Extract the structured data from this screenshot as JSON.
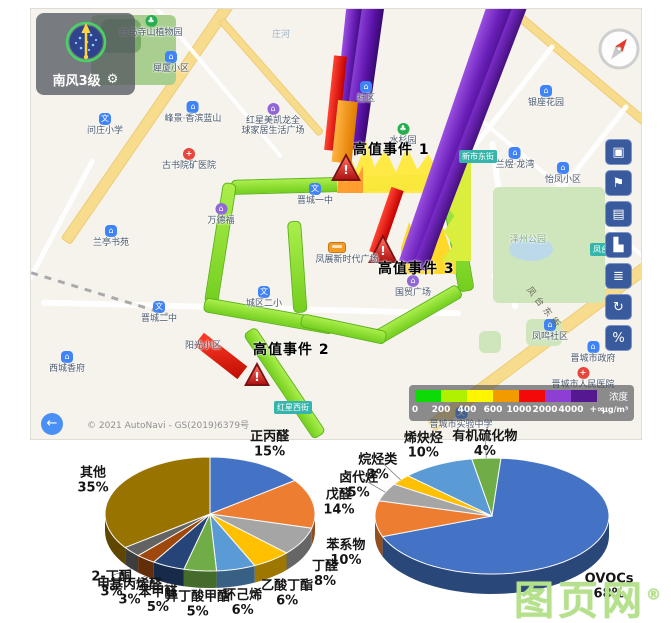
{
  "map": {
    "wind_badge": {
      "label": "南风3级",
      "gear": "⚙"
    },
    "river_label": "庄河",
    "road_tags": {
      "xinshi": "新市东街",
      "fengtai_tag": "凤台东街",
      "hongxing": "红星西街",
      "fengtai_road": "凤台东街"
    },
    "places": [
      {
        "name": "白马寺山植物园",
        "icon": "park"
      },
      {
        "name": "犀厦小区",
        "icon": "home"
      },
      {
        "name": "峰景·香滨蓝山",
        "icon": "home"
      },
      {
        "name": "问庄小学",
        "icon": "school"
      },
      {
        "name": "红星美凯龙全",
        "name2": "球家居生活广场",
        "icon": "mall"
      },
      {
        "name": "社区",
        "icon": "home"
      },
      {
        "name": "银座花园",
        "icon": "home"
      },
      {
        "name": "水杉园",
        "icon": "park"
      },
      {
        "name": "古书院矿医院",
        "icon": "hospital"
      },
      {
        "name": "万德福",
        "icon": "mall"
      },
      {
        "name": "兰亭书苑",
        "icon": "home"
      },
      {
        "name": "晋城一中",
        "icon": "school"
      },
      {
        "name": "兰煜·龙湾",
        "icon": "home"
      },
      {
        "name": "怡凤小区",
        "icon": "home"
      },
      {
        "name": "凤展新时代广场",
        "icon": "none"
      },
      {
        "name": "国贸广场",
        "icon": "mall"
      },
      {
        "name": "城区二小",
        "icon": "school"
      },
      {
        "name": "晋城二中",
        "icon": "school"
      },
      {
        "name": "阳光小区",
        "icon": "none"
      },
      {
        "name": "西城香府",
        "icon": "home"
      },
      {
        "name": "凤鸣社区",
        "icon": "home"
      },
      {
        "name": "晋城市政府",
        "icon": "gov"
      },
      {
        "name": "晋城市人民医院",
        "icon": "hospital"
      },
      {
        "name": "晋城市实验中学",
        "icon": "school"
      },
      {
        "name": "泽州公园",
        "icon": "none"
      }
    ],
    "events": [
      {
        "label": "高值事件 1"
      },
      {
        "label": "高值事件 3"
      },
      {
        "label": "高值事件 2"
      }
    ],
    "legend": {
      "title": "浓度",
      "unit": "μg/m³",
      "ticks": [
        "0",
        "200",
        "400",
        "600",
        "1000",
        "2000",
        "4000",
        "+∞"
      ],
      "colors": [
        "#0ddb07",
        "#aef202",
        "#fef600",
        "#f29b00",
        "#f30909",
        "#8d3fd3",
        "#55188f"
      ]
    },
    "toolbar": [
      {
        "name": "monitor",
        "glyph": "▣"
      },
      {
        "name": "flag",
        "glyph": "⚑"
      },
      {
        "name": "gallery",
        "glyph": "▤"
      },
      {
        "name": "chart",
        "glyph": "▙"
      },
      {
        "name": "report",
        "glyph": "≣"
      },
      {
        "name": "refresh",
        "glyph": "↻"
      },
      {
        "name": "percent",
        "glyph": "%"
      }
    ],
    "copyright": "© 2021 AutoNavi - GS(2019)6379号",
    "back_arrow": "←"
  },
  "watermark": {
    "text": "图页网",
    "reg": "®"
  },
  "chart_data": [
    {
      "type": "pie",
      "labels": [
        "正丙醛",
        "戊醛",
        "丁醛",
        "乙酸丁酯",
        "环己烯",
        "异丁酸甲酯",
        "苯甲醛",
        "甲基丙烯醛",
        "2-丁酮",
        "其他"
      ],
      "values": [
        15,
        14,
        8,
        6,
        6,
        5,
        5,
        3,
        3,
        35
      ],
      "colors": [
        "#4472C4",
        "#ED7D31",
        "#A5A5A5",
        "#FFC000",
        "#5B9BD5",
        "#70AD47",
        "#264478",
        "#9E480E",
        "#636363",
        "#997300"
      ],
      "start_angle": 0,
      "legend_position": "none"
    },
    {
      "type": "pie",
      "labels": [
        "有机硫化物",
        "OVOCs",
        "苯系物",
        "卤代烃",
        "烷烃类",
        "烯炔烃"
      ],
      "values": [
        4,
        68,
        10,
        5,
        3,
        10
      ],
      "colors": [
        "#70AD47",
        "#4472C4",
        "#ED7D31",
        "#A5A5A5",
        "#FFC000",
        "#5B9BD5"
      ],
      "start_angle": -10,
      "legend_position": "none"
    }
  ]
}
